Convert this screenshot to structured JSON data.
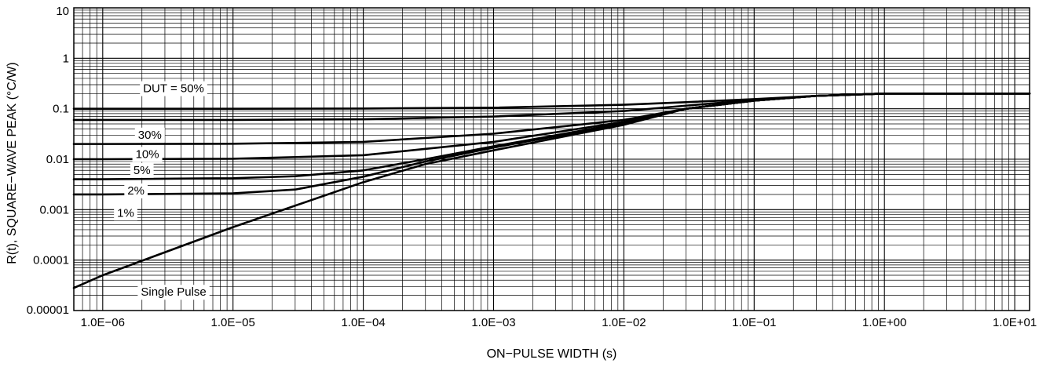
{
  "chart_data": {
    "type": "line",
    "x_scale": "log",
    "y_scale": "log",
    "xlabel": "ON−PULSE WIDTH (s)",
    "ylabel": "R(t), SQUARE−WAVE PEAK (°C/W)",
    "xlim": [
      6e-07,
      13.0
    ],
    "ylim": [
      1e-05,
      10
    ],
    "x_ticks": [
      {
        "value": 1e-06,
        "label": "1.0E−06"
      },
      {
        "value": 1e-05,
        "label": "1.0E−05"
      },
      {
        "value": 0.0001,
        "label": "1.0E−04"
      },
      {
        "value": 0.001,
        "label": "1.0E−03"
      },
      {
        "value": 0.01,
        "label": "1.0E−02"
      },
      {
        "value": 0.1,
        "label": "1.0E−01"
      },
      {
        "value": 1.0,
        "label": "1.0E+00"
      },
      {
        "value": 10.0,
        "label": "1.0E+01"
      }
    ],
    "y_ticks": [
      {
        "value": 10,
        "label": "10"
      },
      {
        "value": 1,
        "label": "1"
      },
      {
        "value": 0.1,
        "label": "0.1"
      },
      {
        "value": 0.01,
        "label": "0.01"
      },
      {
        "value": 0.001,
        "label": "0.001"
      },
      {
        "value": 0.0001,
        "label": "0.0001"
      },
      {
        "value": 1e-05,
        "label": "0.00001"
      }
    ],
    "grid": true,
    "series": [
      {
        "name": "DUT = 50%",
        "label_at": [
          3.5e-06,
          0.25
        ],
        "points": [
          [
            6e-07,
            0.1
          ],
          [
            1e-06,
            0.1
          ],
          [
            1e-05,
            0.1
          ],
          [
            0.0001,
            0.101
          ],
          [
            0.001,
            0.105
          ],
          [
            0.01,
            0.12
          ],
          [
            0.03,
            0.135
          ],
          [
            0.1,
            0.155
          ],
          [
            0.3,
            0.18
          ],
          [
            1,
            0.2
          ],
          [
            13.0,
            0.2
          ]
        ]
      },
      {
        "name": "30%",
        "label_at": [
          2.3e-06,
          0.03
        ],
        "points": [
          [
            6e-07,
            0.06
          ],
          [
            1e-06,
            0.06
          ],
          [
            1e-05,
            0.06
          ],
          [
            0.0001,
            0.062
          ],
          [
            0.001,
            0.07
          ],
          [
            0.01,
            0.09
          ],
          [
            0.03,
            0.115
          ],
          [
            0.1,
            0.15
          ],
          [
            0.3,
            0.18
          ],
          [
            1,
            0.2
          ],
          [
            13.0,
            0.2
          ]
        ]
      },
      {
        "name": "10%",
        "label_at": [
          2.2e-06,
          0.0125
        ],
        "points": [
          [
            6e-07,
            0.02
          ],
          [
            1e-06,
            0.02
          ],
          [
            1e-05,
            0.0202
          ],
          [
            0.0001,
            0.022
          ],
          [
            0.001,
            0.032
          ],
          [
            0.01,
            0.06
          ],
          [
            0.03,
            0.1
          ],
          [
            0.1,
            0.145
          ],
          [
            0.3,
            0.18
          ],
          [
            1,
            0.2
          ],
          [
            13.0,
            0.2
          ]
        ]
      },
      {
        "name": "5%",
        "label_at": [
          2e-06,
          0.006
        ],
        "points": [
          [
            6e-07,
            0.01
          ],
          [
            1e-06,
            0.01
          ],
          [
            1e-05,
            0.0102
          ],
          [
            0.0001,
            0.012
          ],
          [
            0.001,
            0.022
          ],
          [
            0.01,
            0.055
          ],
          [
            0.03,
            0.1
          ],
          [
            0.1,
            0.145
          ],
          [
            0.3,
            0.18
          ],
          [
            1,
            0.2
          ],
          [
            13.0,
            0.2
          ]
        ]
      },
      {
        "name": "2%",
        "label_at": [
          1.8e-06,
          0.00235
        ],
        "points": [
          [
            6e-07,
            0.004
          ],
          [
            1e-06,
            0.004
          ],
          [
            1e-05,
            0.0042
          ],
          [
            3e-05,
            0.0046
          ],
          [
            0.0001,
            0.006
          ],
          [
            0.0003,
            0.01
          ],
          [
            0.001,
            0.018
          ],
          [
            0.01,
            0.052
          ],
          [
            0.03,
            0.1
          ],
          [
            0.1,
            0.145
          ],
          [
            0.3,
            0.18
          ],
          [
            1,
            0.2
          ],
          [
            13.0,
            0.2
          ]
        ]
      },
      {
        "name": "1%",
        "label_at": [
          1.5e-06,
          0.00085
        ],
        "points": [
          [
            6e-07,
            0.002
          ],
          [
            1e-06,
            0.002
          ],
          [
            1e-05,
            0.0021
          ],
          [
            3e-05,
            0.0025
          ],
          [
            0.0001,
            0.0045
          ],
          [
            0.0003,
            0.009
          ],
          [
            0.001,
            0.017
          ],
          [
            0.01,
            0.05
          ],
          [
            0.03,
            0.1
          ],
          [
            0.1,
            0.145
          ],
          [
            0.3,
            0.18
          ],
          [
            1,
            0.2
          ],
          [
            13.0,
            0.2
          ]
        ]
      },
      {
        "name": "Single Pulse",
        "label_at": [
          3.5e-06,
          2.3e-05
        ],
        "points": [
          [
            6e-07,
            2.8e-05
          ],
          [
            1e-06,
            5e-05
          ],
          [
            1e-05,
            0.00045
          ],
          [
            0.0001,
            0.0035
          ],
          [
            0.0003,
            0.008
          ],
          [
            0.001,
            0.015
          ],
          [
            0.01,
            0.048
          ],
          [
            0.03,
            0.1
          ],
          [
            0.1,
            0.145
          ],
          [
            0.3,
            0.18
          ],
          [
            1,
            0.2
          ],
          [
            13.0,
            0.2
          ]
        ]
      }
    ]
  }
}
